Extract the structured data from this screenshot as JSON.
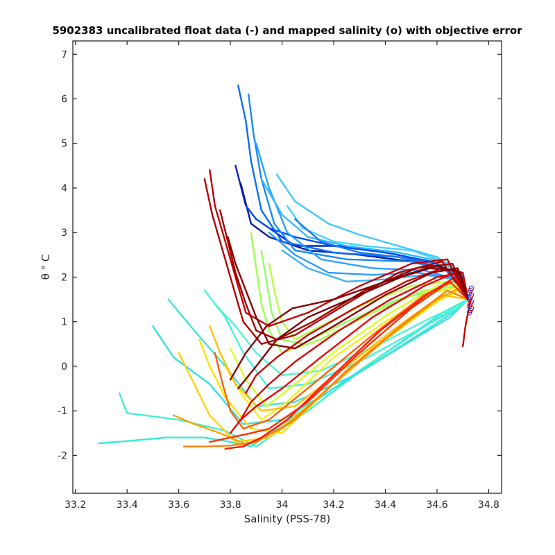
{
  "chart_data": {
    "type": "line",
    "title": "5902383 uncalibrated float data (-) and mapped salinity (o) with objective error",
    "xlabel": "Salinity (PSS-78)",
    "ylabel": "θ ° C",
    "xlim": [
      33.19,
      34.85
    ],
    "ylim": [
      -2.85,
      7.3
    ],
    "xticks": [
      "33.2",
      "33.4",
      "33.6",
      "33.8",
      "34",
      "34.2",
      "34.4",
      "34.6",
      "34.8"
    ],
    "yticks": [
      "-2",
      "-1",
      "0",
      "1",
      "2",
      "3",
      "4",
      "5",
      "6",
      "7"
    ],
    "grid": false,
    "legend": "none",
    "colormap": "jet",
    "series": [
      {
        "color": "#0022c8",
        "x": [
          33.82,
          33.86,
          33.9,
          34.05,
          34.25,
          34.45,
          34.6,
          34.68,
          34.72
        ],
        "y": [
          4.5,
          3.6,
          3.3,
          2.7,
          2.7,
          2.5,
          2.3,
          2.0,
          1.5
        ]
      },
      {
        "color": "#001c9c",
        "x": [
          33.84,
          33.88,
          33.95,
          34.1,
          34.3,
          34.5,
          34.63,
          34.7,
          34.72
        ],
        "y": [
          4.1,
          3.2,
          2.9,
          2.6,
          2.5,
          2.35,
          2.2,
          1.9,
          1.5
        ]
      },
      {
        "color": "#0050f0",
        "x": [
          33.86,
          33.9,
          33.95,
          34.05,
          34.2,
          34.4,
          34.58,
          34.68,
          34.72
        ],
        "y": [
          3.6,
          3.3,
          3.1,
          2.9,
          2.7,
          2.55,
          2.35,
          2.0,
          1.5
        ]
      },
      {
        "color": "#0a6cf5",
        "x": [
          33.83,
          33.86,
          33.88,
          33.92,
          34.0,
          34.2,
          34.45,
          34.63,
          34.72
        ],
        "y": [
          6.3,
          5.5,
          4.6,
          3.5,
          2.8,
          2.55,
          2.45,
          2.2,
          1.5
        ]
      },
      {
        "color": "#1a88f8",
        "x": [
          33.87,
          33.89,
          33.92,
          33.97,
          34.05,
          34.25,
          34.5,
          34.66,
          34.72
        ],
        "y": [
          6.1,
          5.2,
          4.2,
          3.2,
          2.6,
          2.4,
          2.35,
          2.1,
          1.5
        ]
      },
      {
        "color": "#28a2ff",
        "x": [
          33.9,
          33.95,
          34.02,
          34.15,
          34.35,
          34.55,
          34.68,
          34.72
        ],
        "y": [
          5.0,
          4.0,
          3.0,
          2.4,
          2.2,
          2.15,
          1.95,
          1.5
        ]
      },
      {
        "color": "#30b8ff",
        "x": [
          33.92,
          34.0,
          34.1,
          34.25,
          34.45,
          34.62,
          34.7,
          34.72
        ],
        "y": [
          4.2,
          3.4,
          2.9,
          2.7,
          2.55,
          2.35,
          2.0,
          1.5
        ]
      },
      {
        "color": "#3cc8ff",
        "x": [
          33.98,
          34.05,
          34.18,
          34.3,
          34.45,
          34.6,
          34.7,
          34.72
        ],
        "y": [
          4.3,
          3.7,
          3.2,
          2.95,
          2.7,
          2.45,
          2.05,
          1.5
        ]
      },
      {
        "color": "#46d2ff",
        "x": [
          34.02,
          34.08,
          34.2,
          34.32,
          34.5,
          34.65,
          34.72
        ],
        "y": [
          3.6,
          3.1,
          2.8,
          2.7,
          2.6,
          2.3,
          1.5
        ]
      },
      {
        "color": "#2f9cf5",
        "x": [
          33.95,
          34.05,
          34.18,
          34.35,
          34.52,
          34.66,
          34.72
        ],
        "y": [
          3.0,
          2.5,
          2.1,
          2.05,
          2.1,
          2.0,
          1.5
        ]
      },
      {
        "color": "#3ab0f8",
        "x": [
          34.0,
          34.1,
          34.25,
          34.4,
          34.55,
          34.67,
          34.72
        ],
        "y": [
          2.6,
          2.2,
          1.9,
          1.95,
          2.05,
          1.95,
          1.5
        ]
      },
      {
        "color": "#1f7aeb",
        "x": [
          34.05,
          34.15,
          34.3,
          34.45,
          34.6,
          34.7,
          34.72
        ],
        "y": [
          3.3,
          2.8,
          2.55,
          2.45,
          2.3,
          2.0,
          1.5
        ]
      },
      {
        "color": "#38e8d8",
        "x": [
          33.29,
          33.4,
          33.55,
          33.7,
          33.8,
          33.88,
          34.0,
          34.2,
          34.45,
          34.62,
          34.72
        ],
        "y": [
          -1.73,
          -1.68,
          -1.6,
          -1.6,
          -1.7,
          -1.8,
          -1.3,
          -0.5,
          0.5,
          1.2,
          1.5
        ]
      },
      {
        "color": "#40f0d0",
        "x": [
          33.37,
          33.4,
          33.6,
          33.78,
          33.9,
          34.1,
          34.35,
          34.58,
          34.72
        ],
        "y": [
          -0.6,
          -1.05,
          -1.2,
          -1.45,
          -1.8,
          -1.0,
          0.1,
          1.0,
          1.5
        ]
      },
      {
        "color": "#34e0e0",
        "x": [
          33.5,
          33.58,
          33.72,
          33.85,
          34.0,
          34.2,
          34.45,
          34.65,
          34.72
        ],
        "y": [
          0.9,
          0.2,
          -0.4,
          -1.3,
          -1.2,
          -0.5,
          0.4,
          1.1,
          1.5
        ]
      },
      {
        "color": "#3ce4dc",
        "x": [
          33.56,
          33.66,
          33.78,
          33.9,
          34.05,
          34.28,
          34.5,
          34.66,
          34.72
        ],
        "y": [
          1.5,
          0.8,
          0.0,
          -0.9,
          -0.8,
          -0.2,
          0.6,
          1.2,
          1.5
        ]
      },
      {
        "color": "#44f2e0",
        "x": [
          33.7,
          33.78,
          33.85,
          33.95,
          34.1,
          34.3,
          34.52,
          34.68,
          34.72
        ],
        "y": [
          1.7,
          1.1,
          0.3,
          -0.5,
          -0.4,
          0.1,
          0.8,
          1.3,
          1.5
        ]
      },
      {
        "color": "#4cf8d0",
        "x": [
          33.74,
          33.82,
          33.9,
          34.0,
          34.15,
          34.38,
          34.58,
          34.7,
          34.72
        ],
        "y": [
          1.4,
          0.9,
          0.3,
          -0.2,
          -0.1,
          0.5,
          1.1,
          1.4,
          1.5
        ]
      },
      {
        "color": "#a0ff50",
        "x": [
          33.88,
          33.9,
          33.92,
          33.95,
          34.0,
          34.15,
          34.35,
          34.55,
          34.68,
          34.72
        ],
        "y": [
          3.0,
          2.2,
          1.4,
          0.8,
          0.3,
          0.6,
          1.2,
          1.7,
          1.8,
          1.5
        ]
      },
      {
        "color": "#90ff60",
        "x": [
          33.92,
          33.94,
          33.96,
          34.0,
          34.08,
          34.25,
          34.45,
          34.62,
          34.72
        ],
        "y": [
          2.6,
          1.9,
          1.2,
          0.6,
          0.5,
          1.0,
          1.5,
          1.75,
          1.5
        ]
      },
      {
        "color": "#b4ff40",
        "x": [
          33.95,
          33.97,
          34.0,
          34.05,
          34.15,
          34.32,
          34.5,
          34.65,
          34.72
        ],
        "y": [
          2.3,
          1.7,
          1.0,
          0.6,
          0.9,
          1.4,
          1.8,
          1.9,
          1.5
        ]
      },
      {
        "color": "#d8ff20",
        "x": [
          33.8,
          33.86,
          33.94,
          34.05,
          34.22,
          34.42,
          34.6,
          34.7,
          34.72
        ],
        "y": [
          0.4,
          -0.3,
          -0.9,
          -0.4,
          0.4,
          1.2,
          1.8,
          1.85,
          1.5
        ]
      },
      {
        "color": "#f0f018",
        "x": [
          33.78,
          33.84,
          33.92,
          34.02,
          34.2,
          34.4,
          34.58,
          34.7,
          34.72
        ],
        "y": [
          0.0,
          -0.6,
          -1.2,
          -0.8,
          0.2,
          1.0,
          1.65,
          1.8,
          1.5
        ]
      },
      {
        "color": "#ffd000",
        "x": [
          33.6,
          33.66,
          33.72,
          33.82,
          33.95,
          34.12,
          34.35,
          34.55,
          34.68,
          34.72
        ],
        "y": [
          0.3,
          -0.4,
          -1.1,
          -1.7,
          -1.6,
          -0.8,
          0.4,
          1.3,
          1.7,
          1.5
        ]
      },
      {
        "color": "#ffe000",
        "x": [
          33.68,
          33.72,
          33.78,
          33.88,
          34.0,
          34.18,
          34.4,
          34.6,
          34.7,
          34.72
        ],
        "y": [
          0.6,
          0.0,
          -0.7,
          -1.4,
          -1.5,
          -0.5,
          0.6,
          1.45,
          1.75,
          1.5
        ]
      },
      {
        "color": "#ffc000",
        "x": [
          33.72,
          33.76,
          33.82,
          33.92,
          34.05,
          34.25,
          34.45,
          34.62,
          34.72
        ],
        "y": [
          0.9,
          0.3,
          -0.4,
          -1.0,
          -0.9,
          0.0,
          0.9,
          1.6,
          1.5
        ]
      },
      {
        "color": "#ffa000",
        "x": [
          33.58,
          33.66,
          33.76,
          33.86,
          34.0,
          34.2,
          34.42,
          34.6,
          34.7,
          34.72
        ],
        "y": [
          -1.1,
          -1.3,
          -1.5,
          -1.75,
          -1.4,
          -0.4,
          0.7,
          1.5,
          1.8,
          1.5
        ]
      },
      {
        "color": "#ff8000",
        "x": [
          33.62,
          33.7,
          33.8,
          33.9,
          34.05,
          34.25,
          34.48,
          34.64,
          34.72
        ],
        "y": [
          -1.8,
          -1.8,
          -1.78,
          -1.7,
          -1.2,
          -0.1,
          1.0,
          1.7,
          1.5
        ]
      },
      {
        "color": "#ff6000",
        "x": [
          33.74,
          33.77,
          33.8,
          33.85,
          33.95,
          34.12,
          34.35,
          34.55,
          34.68,
          34.72
        ],
        "y": [
          0.3,
          -0.4,
          -1.0,
          -1.4,
          -1.2,
          -0.4,
          0.7,
          1.6,
          1.95,
          1.5
        ]
      },
      {
        "color": "#ff3000",
        "x": [
          33.72,
          33.8,
          33.88,
          33.95,
          34.1,
          34.3,
          34.5,
          34.65,
          34.72
        ],
        "y": [
          -1.7,
          -1.6,
          -1.5,
          -1.4,
          -0.8,
          0.3,
          1.3,
          1.9,
          1.5
        ]
      },
      {
        "color": "#ff1800",
        "x": [
          33.78,
          33.85,
          33.92,
          34.02,
          34.18,
          34.38,
          34.56,
          34.67,
          34.72
        ],
        "y": [
          -1.85,
          -1.8,
          -1.6,
          -1.2,
          -0.3,
          0.8,
          1.6,
          2.0,
          1.5
        ]
      },
      {
        "color": "#f00000",
        "x": [
          33.8,
          33.84,
          33.9,
          34.0,
          34.15,
          34.35,
          34.55,
          34.67,
          34.72
        ],
        "y": [
          -1.5,
          -1.2,
          -0.9,
          -0.5,
          0.2,
          1.1,
          1.8,
          2.1,
          1.5
        ]
      },
      {
        "color": "#e00000",
        "x": [
          33.84,
          33.88,
          33.95,
          34.05,
          34.22,
          34.42,
          34.6,
          34.69,
          34.72
        ],
        "y": [
          -1.2,
          -0.8,
          -0.4,
          0.1,
          0.8,
          1.5,
          2.0,
          2.1,
          1.5
        ]
      },
      {
        "color": "#d00000",
        "x": [
          33.86,
          33.9,
          33.98,
          34.1,
          34.28,
          34.48,
          34.62,
          34.7,
          34.72
        ],
        "y": [
          -0.6,
          -0.2,
          0.2,
          0.7,
          1.3,
          1.9,
          2.2,
          2.1,
          1.5
        ]
      },
      {
        "color": "#c00000",
        "x": [
          33.72,
          33.74,
          33.78,
          33.82,
          33.86,
          33.95,
          34.1,
          34.3,
          34.5,
          34.64,
          34.72
        ],
        "y": [
          4.4,
          3.6,
          2.8,
          2.0,
          1.2,
          0.9,
          1.2,
          1.8,
          2.3,
          2.4,
          1.5
        ]
      },
      {
        "color": "#b00000",
        "x": [
          33.7,
          33.73,
          33.77,
          33.81,
          33.85,
          33.92,
          34.05,
          34.25,
          34.45,
          34.62,
          34.72
        ],
        "y": [
          4.2,
          3.4,
          2.6,
          1.8,
          1.0,
          0.5,
          0.7,
          1.4,
          2.1,
          2.35,
          1.5
        ]
      },
      {
        "color": "#a00000",
        "x": [
          33.76,
          33.79,
          33.82,
          33.86,
          33.9,
          33.98,
          34.12,
          34.32,
          34.52,
          34.66,
          34.72
        ],
        "y": [
          3.5,
          2.8,
          2.1,
          1.4,
          0.8,
          0.6,
          1.0,
          1.7,
          2.2,
          2.3,
          1.5
        ]
      },
      {
        "color": "#900000",
        "x": [
          33.79,
          33.82,
          33.86,
          33.9,
          33.95,
          34.05,
          34.2,
          34.4,
          34.58,
          34.68,
          34.72
        ],
        "y": [
          2.9,
          2.3,
          1.7,
          1.1,
          0.5,
          0.4,
          0.9,
          1.6,
          2.1,
          2.2,
          1.5
        ]
      },
      {
        "color": "#880000",
        "x": [
          33.8,
          33.86,
          33.94,
          34.04,
          34.2,
          34.4,
          34.56,
          34.68,
          34.72
        ],
        "y": [
          -0.3,
          0.3,
          0.9,
          1.3,
          1.5,
          1.9,
          2.2,
          2.15,
          1.5
        ]
      },
      {
        "color": "#7c0000",
        "x": [
          33.83,
          33.9,
          33.98,
          34.1,
          34.26,
          34.46,
          34.6,
          34.69,
          34.72
        ],
        "y": [
          -0.5,
          0.0,
          0.6,
          1.1,
          1.5,
          2.0,
          2.25,
          2.1,
          1.5
        ]
      },
      {
        "color": "#c80000",
        "x": [
          34.7,
          34.71,
          34.72,
          34.73
        ],
        "y": [
          0.45,
          0.9,
          1.2,
          1.5
        ]
      }
    ]
  }
}
